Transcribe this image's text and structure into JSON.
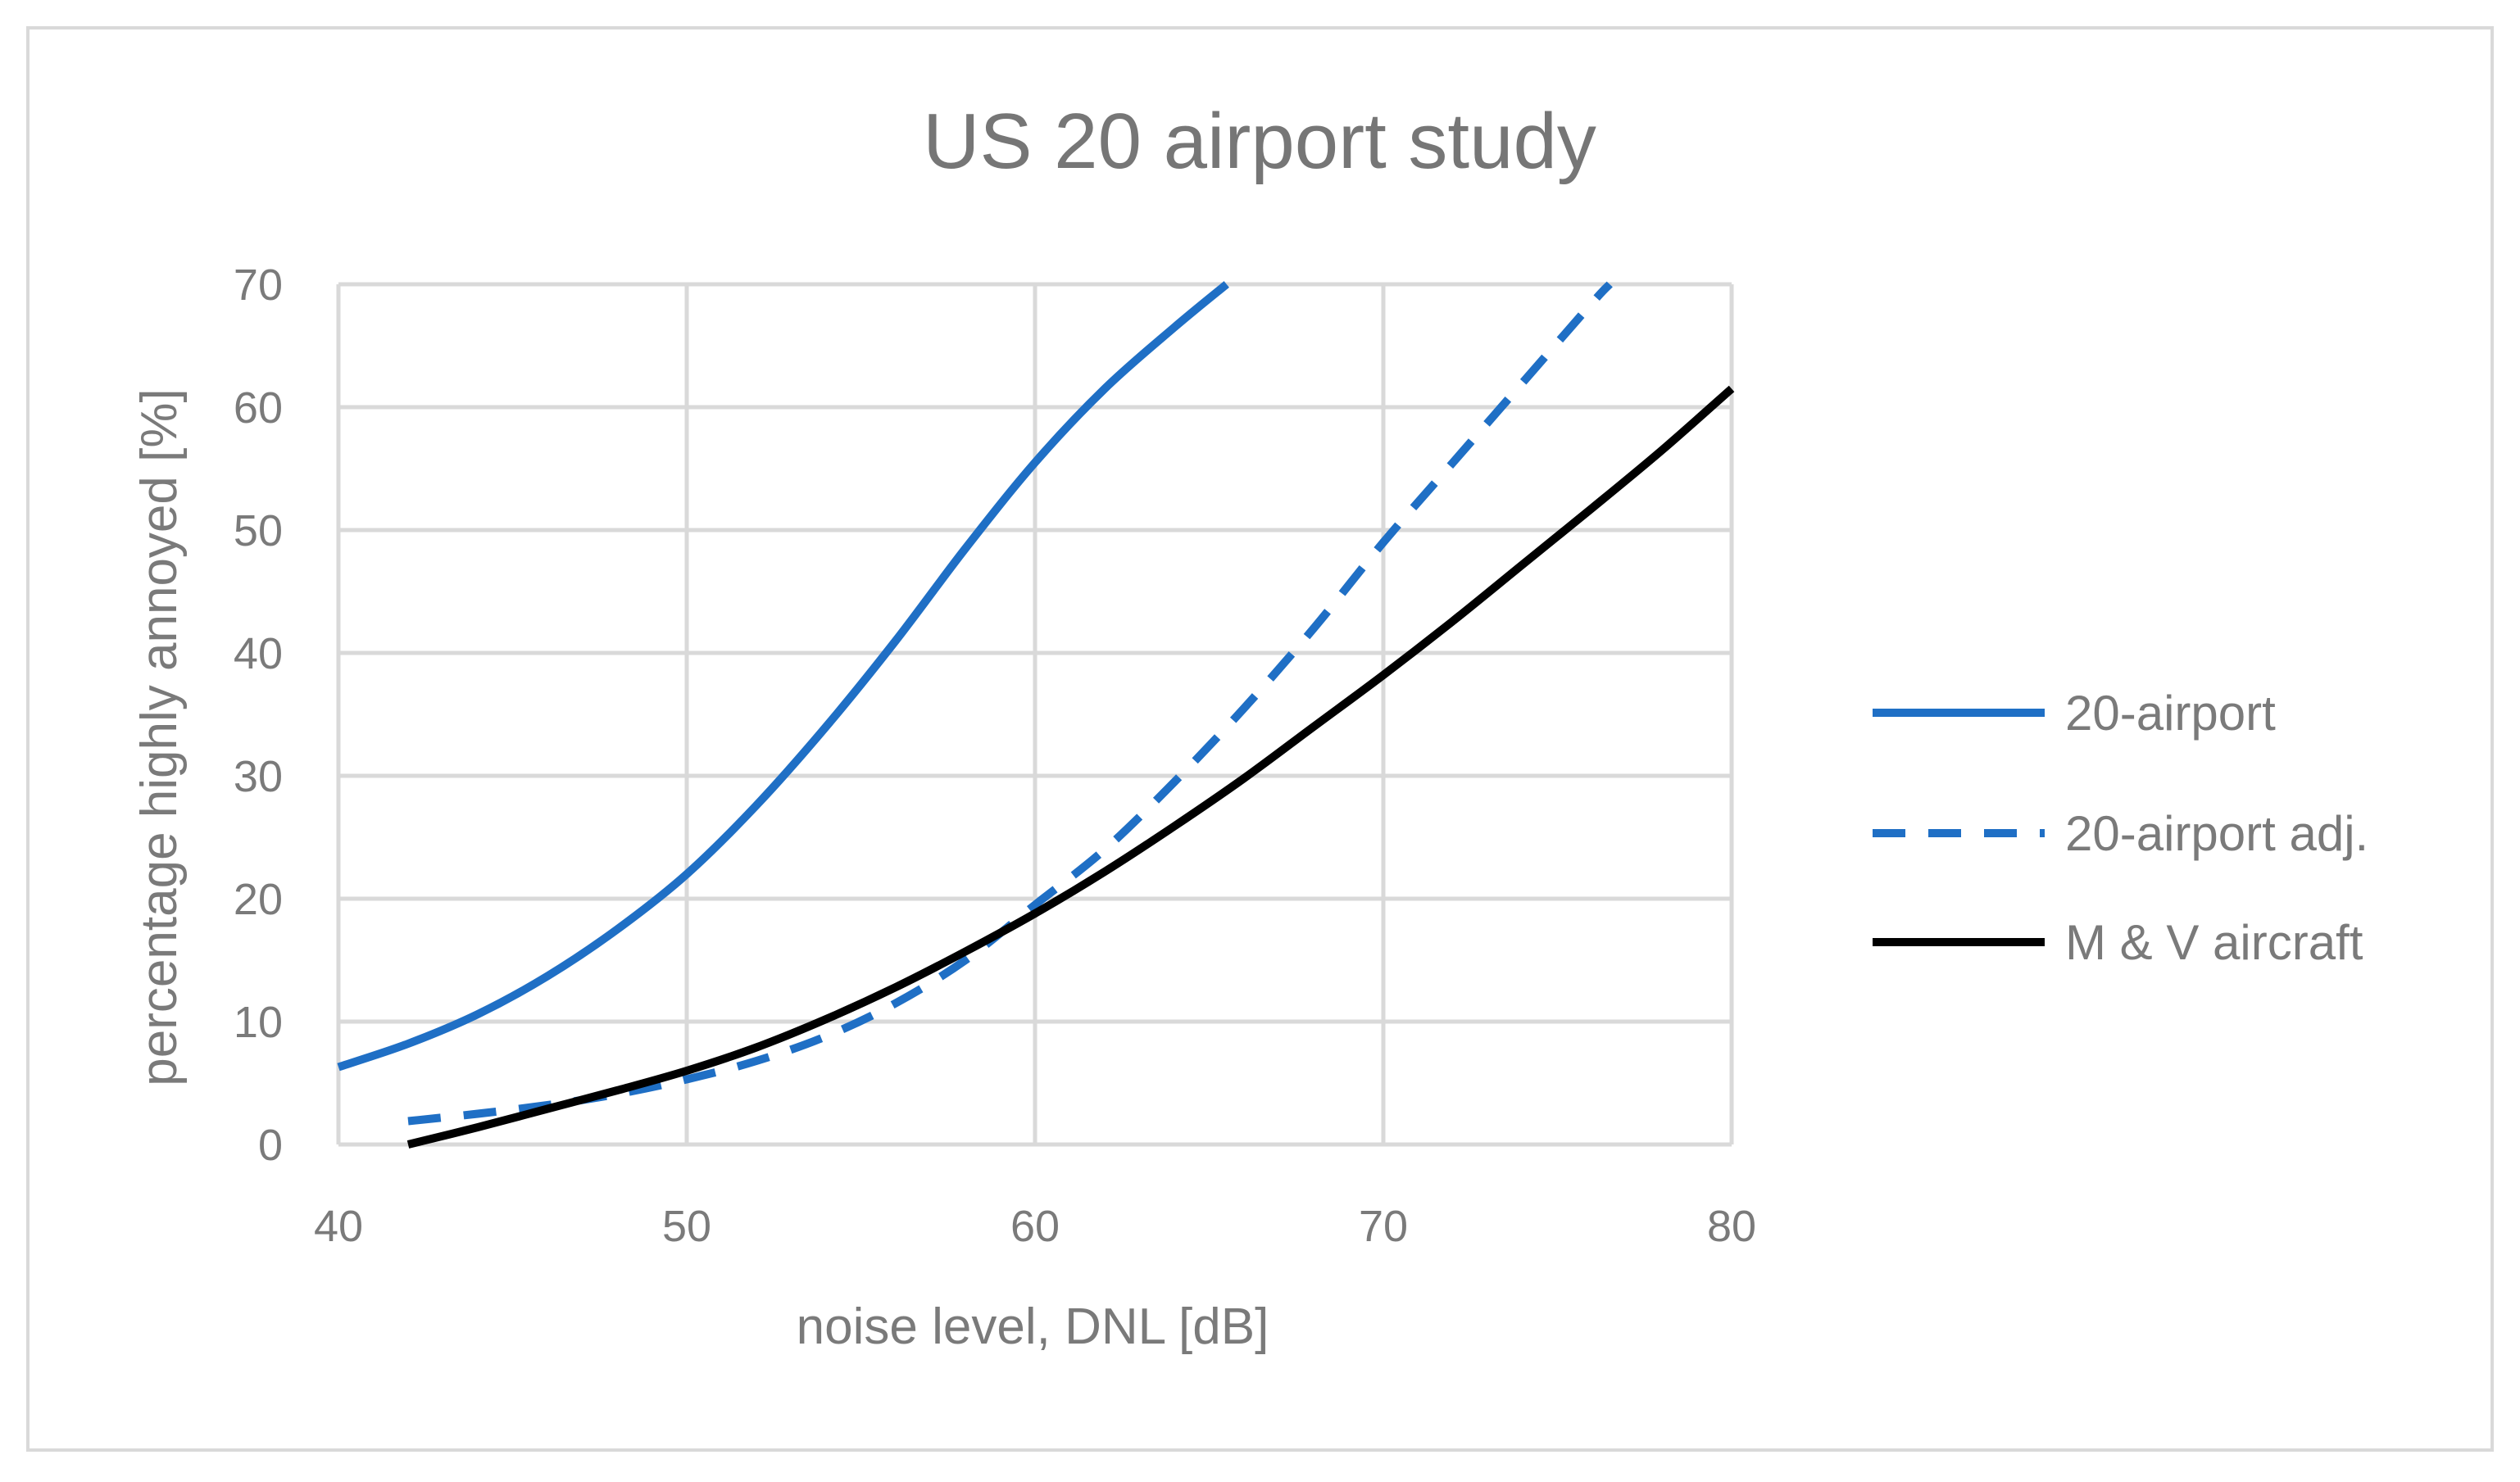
{
  "chart_data": {
    "type": "line",
    "title": "US 20 airport study",
    "xlabel": "noise level, DNL [dB]",
    "ylabel": "percentage highly annoyed [%]",
    "xlim": [
      40,
      80
    ],
    "ylim": [
      0,
      70
    ],
    "x_ticks": [
      40,
      50,
      60,
      70,
      80
    ],
    "y_ticks": [
      0,
      10,
      20,
      30,
      40,
      50,
      60,
      70
    ],
    "grid": true,
    "legend_position": "right",
    "series": [
      {
        "name": "20-airport",
        "color": "#1f6fc5",
        "style": "solid",
        "x": [
          40,
          42,
          44,
          46,
          48,
          50,
          52,
          54,
          56,
          58,
          60,
          62,
          64,
          65.5
        ],
        "y": [
          6.3,
          8.2,
          10.6,
          13.7,
          17.5,
          22.0,
          27.6,
          34.0,
          41.0,
          48.5,
          55.5,
          61.5,
          66.5,
          70
        ]
      },
      {
        "name": "20-airport adj.",
        "color": "#1f6fc5",
        "style": "dashed",
        "x": [
          42,
          44,
          46,
          48,
          50,
          52,
          54,
          56,
          58,
          60,
          62,
          64,
          66,
          68,
          70,
          72,
          74,
          76,
          76.5
        ],
        "y": [
          1.9,
          2.5,
          3.2,
          4.1,
          5.3,
          6.8,
          8.8,
          11.5,
          15.0,
          19.5,
          24.0,
          29.5,
          35.5,
          42.0,
          49.0,
          55.5,
          62.0,
          68.5,
          70
        ]
      },
      {
        "name": "M & V aircraft",
        "color": "#000000",
        "style": "solid",
        "x": [
          42,
          44,
          46,
          48,
          50,
          52,
          54,
          56,
          58,
          60,
          62,
          64,
          66,
          68,
          70,
          72,
          74,
          76,
          78,
          80
        ],
        "y": [
          0,
          1.4,
          2.9,
          4.4,
          6.0,
          7.9,
          10.2,
          12.8,
          15.7,
          18.8,
          22.2,
          25.9,
          29.8,
          34.0,
          38.2,
          42.6,
          47.2,
          51.8,
          56.5,
          61.5
        ]
      }
    ]
  }
}
